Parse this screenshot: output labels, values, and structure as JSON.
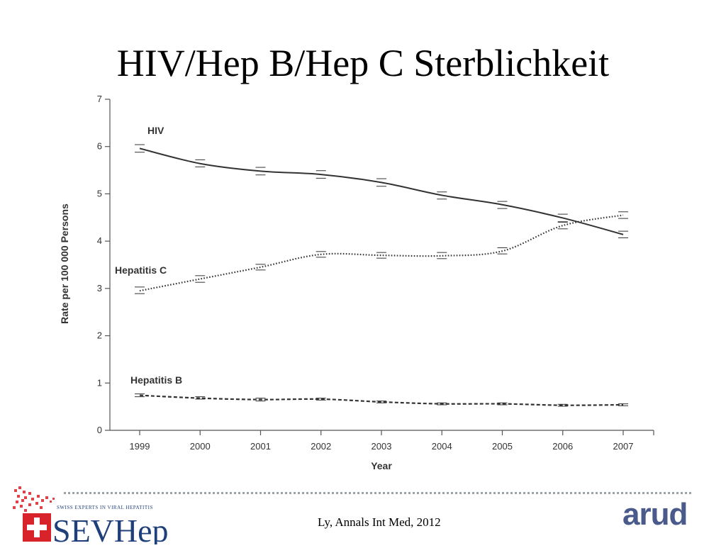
{
  "slide": {
    "title": "HIV/Hep B/Hep C Sterblichkeit",
    "citation": "Ly, Annals Int Med, 2012",
    "logo_left": "SEVHep",
    "logo_left_tagline": "SWISS EXPERTS IN VIRAL HEPATITIS",
    "logo_right": "arud"
  },
  "colors": {
    "line": "#333333",
    "logo_red": "#d8232a",
    "logo_blue": "#1f3f7a",
    "arud_blue": "#4a5a8a"
  },
  "chart_data": {
    "type": "line",
    "xlabel": "Year",
    "ylabel": "Rate per 100 000 Persons",
    "x": [
      "1999",
      "2000",
      "2001",
      "2002",
      "2003",
      "2004",
      "2005",
      "2006",
      "2007"
    ],
    "ylim": [
      0,
      7
    ],
    "yticks": [
      0,
      1,
      2,
      3,
      4,
      5,
      6,
      7
    ],
    "grid": false,
    "legend": "none",
    "series": [
      {
        "name": "HIV",
        "style": "solid",
        "values": [
          5.96,
          5.64,
          5.48,
          5.41,
          5.24,
          4.97,
          4.77,
          4.49,
          4.14
        ],
        "ci_low": [
          5.88,
          5.57,
          5.4,
          5.33,
          5.16,
          4.89,
          4.69,
          4.41,
          4.07
        ],
        "ci_high": [
          6.04,
          5.72,
          5.56,
          5.49,
          5.32,
          5.04,
          4.84,
          4.57,
          4.21
        ]
      },
      {
        "name": "Hepatitis C",
        "style": "dotted",
        "values": [
          2.95,
          3.2,
          3.45,
          3.72,
          3.7,
          3.69,
          3.79,
          4.33,
          4.55
        ],
        "ci_low": [
          2.89,
          3.13,
          3.39,
          3.66,
          3.64,
          3.63,
          3.73,
          4.26,
          4.48
        ],
        "ci_high": [
          3.03,
          3.27,
          3.51,
          3.78,
          3.76,
          3.76,
          3.86,
          4.4,
          4.62
        ]
      },
      {
        "name": "Hepatitis B",
        "style": "dashed",
        "values": [
          0.74,
          0.68,
          0.65,
          0.66,
          0.6,
          0.56,
          0.56,
          0.53,
          0.54
        ],
        "ci_low": [
          0.71,
          0.66,
          0.62,
          0.64,
          0.58,
          0.54,
          0.54,
          0.51,
          0.52
        ],
        "ci_high": [
          0.77,
          0.71,
          0.68,
          0.68,
          0.62,
          0.58,
          0.58,
          0.55,
          0.56
        ]
      }
    ]
  }
}
